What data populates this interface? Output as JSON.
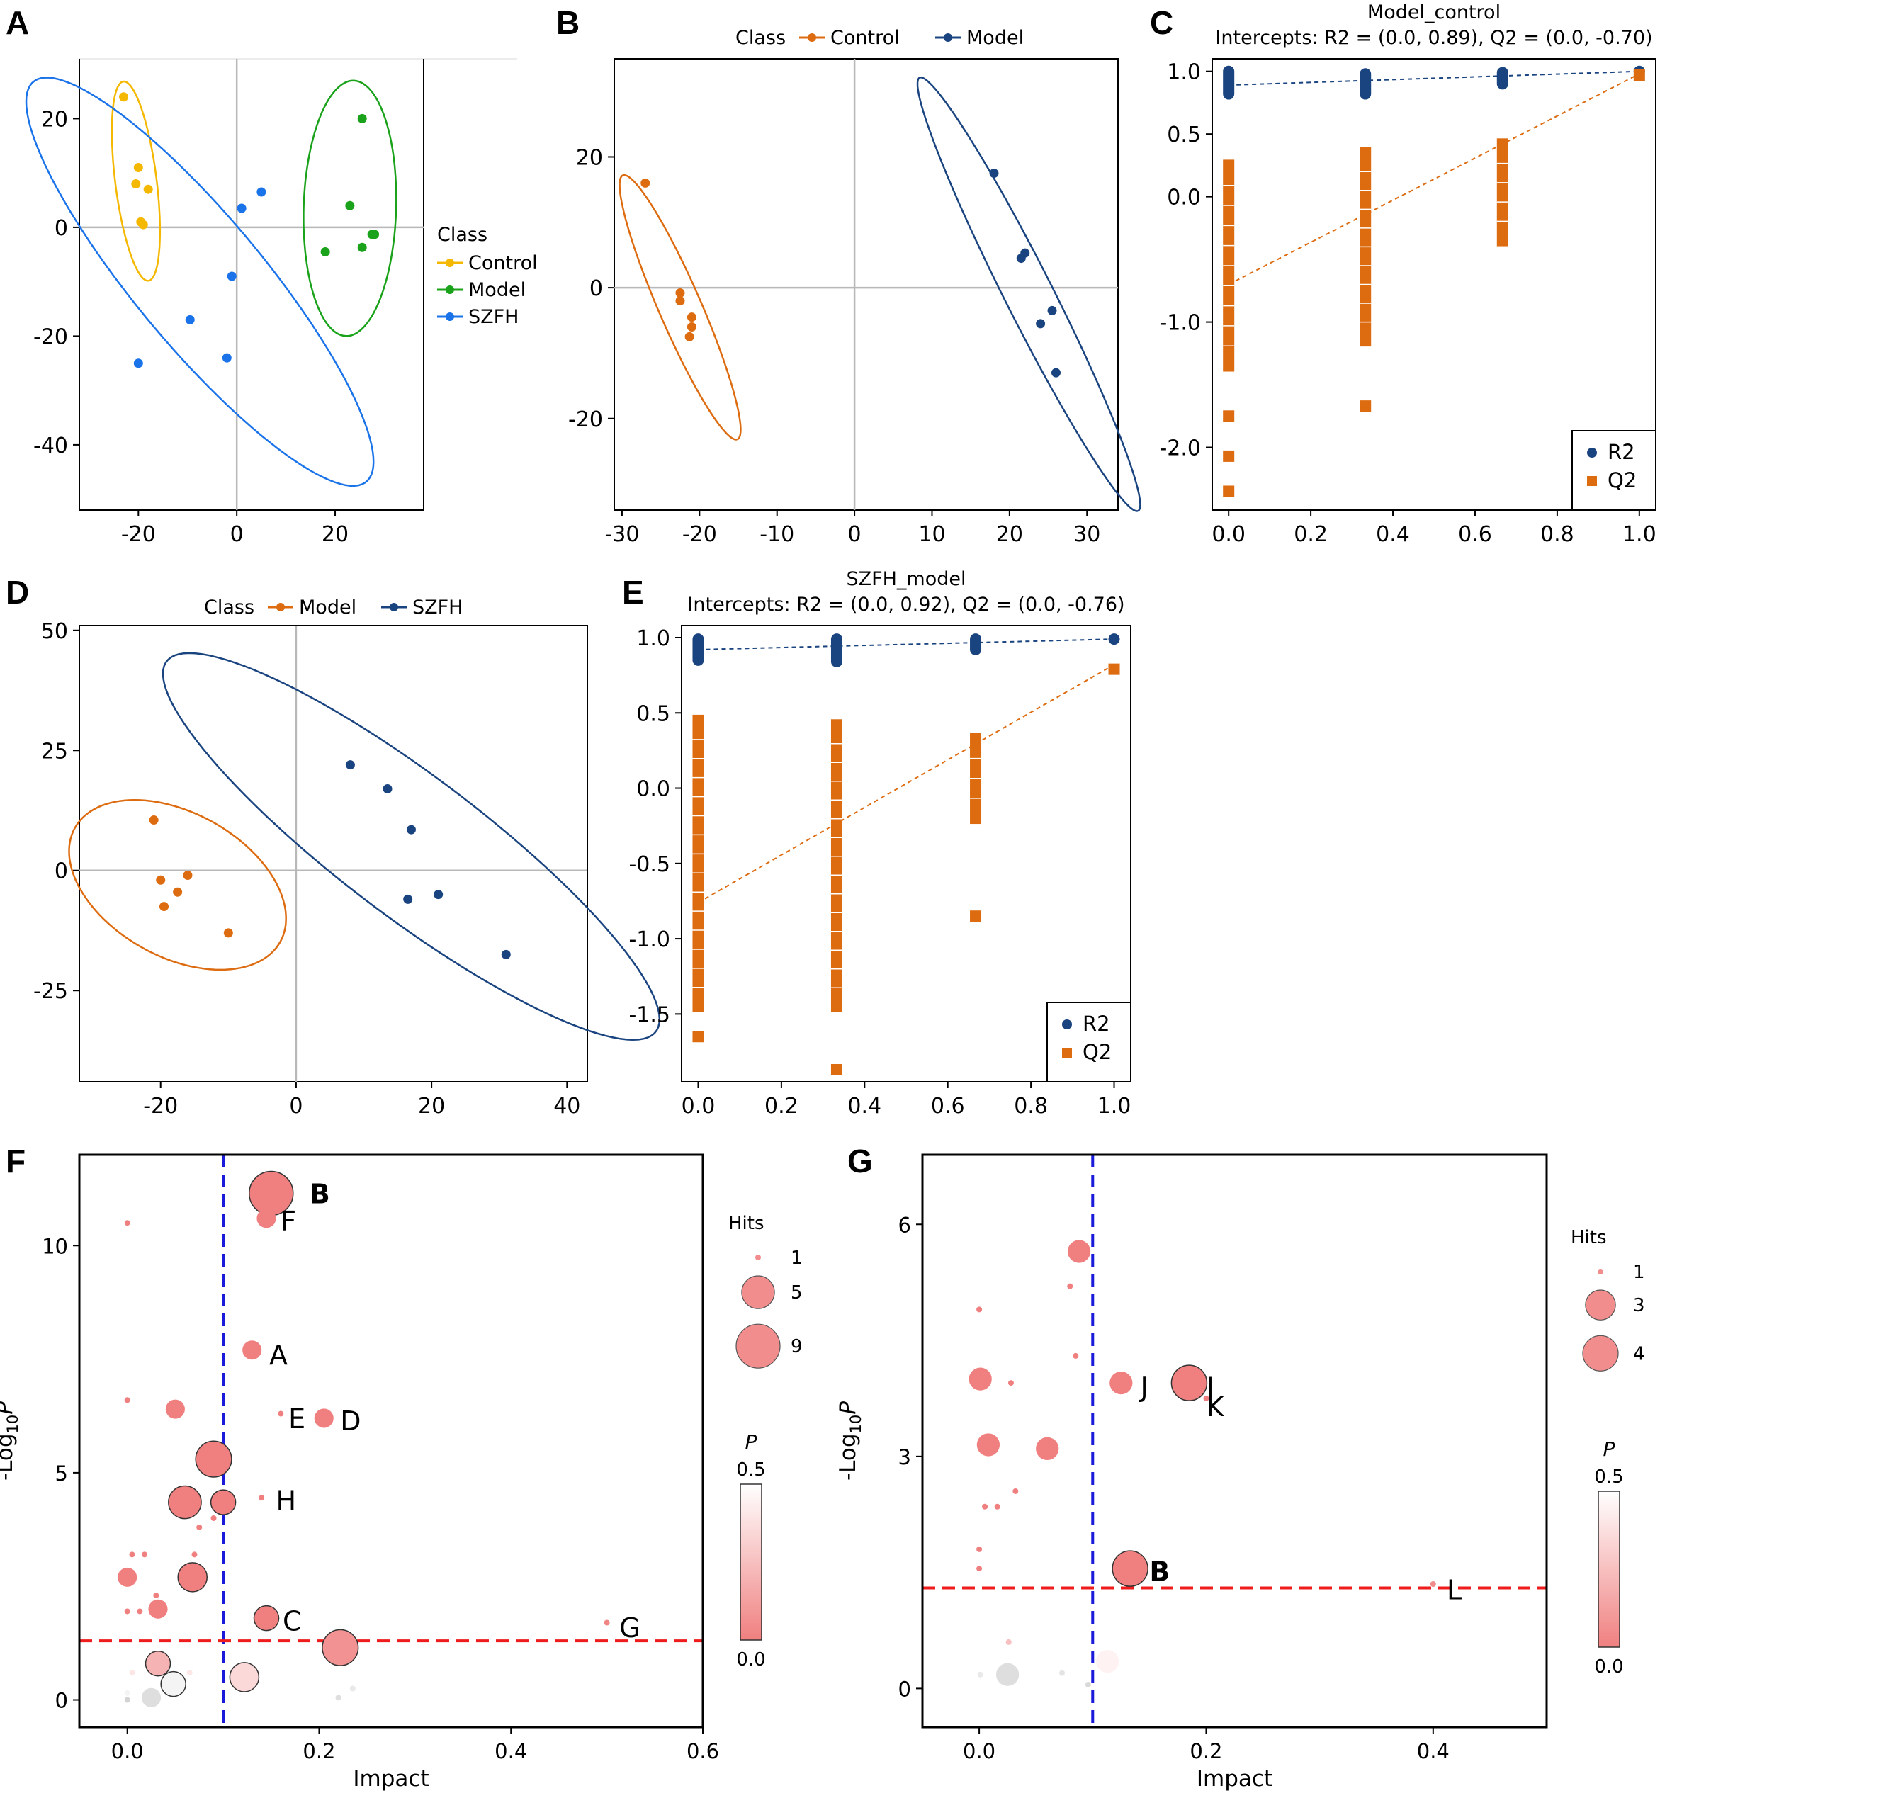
{
  "chart_data": [
    {
      "id": "A",
      "panel_label": "A",
      "type": "scatter",
      "title": "",
      "xlim": [
        -32,
        38
      ],
      "ylim": [
        -52,
        31
      ],
      "xticks": [
        -20,
        0,
        20
      ],
      "yticks": [
        -40,
        -20,
        0,
        20
      ],
      "grid": false,
      "legend": {
        "title": "Class",
        "position": "right",
        "entries": [
          "Control",
          "Model",
          "SZFH"
        ]
      },
      "series": [
        {
          "name": "Control",
          "color": "#f5b800",
          "points": [
            [
              -23,
              24
            ],
            [
              -20,
              11
            ],
            [
              -20.5,
              8
            ],
            [
              -18,
              7
            ],
            [
              -19.5,
              1
            ],
            [
              -19,
              0.5
            ]
          ],
          "ellipse": {
            "cx": -20.5,
            "cy": 8.5,
            "rx": 18.5,
            "ry": 4.2,
            "angle": -82
          }
        },
        {
          "name": "Model",
          "color": "#1aa21a",
          "points": [
            [
              25.5,
              20
            ],
            [
              23,
              4
            ],
            [
              27.5,
              -1.3
            ],
            [
              28,
              -1.3
            ],
            [
              18,
              -4.5
            ],
            [
              25.5,
              -3.7
            ]
          ],
          "ellipse": {
            "cx": 23,
            "cy": 3.5,
            "rx": 23.5,
            "ry": 9.4,
            "angle": -92
          }
        },
        {
          "name": "SZFH",
          "color": "#1a73e8",
          "points": [
            [
              5,
              6.5
            ],
            [
              1,
              3.5
            ],
            [
              -1,
              -9
            ],
            [
              -9.5,
              -17
            ],
            [
              -20,
              -25
            ],
            [
              -2,
              -24
            ]
          ],
          "ellipse": {
            "cx": -7.5,
            "cy": -10,
            "rx": 50,
            "ry": 12.5,
            "angle": -47
          }
        }
      ]
    },
    {
      "id": "B",
      "panel_label": "B",
      "type": "scatter",
      "title": "",
      "xlim": [
        -31,
        34
      ],
      "ylim": [
        -34,
        35
      ],
      "xticks": [
        -30,
        -20,
        -10,
        0,
        10,
        20,
        30
      ],
      "yticks": [
        -20,
        0,
        20
      ],
      "grid": false,
      "legend": {
        "title": "Class",
        "position": "top",
        "entries": [
          "Control",
          "Model"
        ]
      },
      "series": [
        {
          "name": "Control",
          "color": "#dd6b10",
          "points": [
            [
              -27,
              16
            ],
            [
              -22.5,
              -0.8
            ],
            [
              -22.5,
              -2
            ],
            [
              -21,
              -4.5
            ],
            [
              -21,
              -6
            ],
            [
              -21.3,
              -7.5
            ]
          ],
          "ellipse": {
            "cx": -22.5,
            "cy": -3,
            "rx": 21.5,
            "ry": 2.8,
            "angle": -70
          }
        },
        {
          "name": "Model",
          "color": "#1a4480",
          "points": [
            [
              18,
              17.5
            ],
            [
              22,
              5.3
            ],
            [
              21.5,
              4.5
            ],
            [
              25.5,
              -3.5
            ],
            [
              24,
              -5.5
            ],
            [
              26,
              -13
            ]
          ],
          "ellipse": {
            "cx": 22.5,
            "cy": -1,
            "rx": 36,
            "ry": 3.2,
            "angle": -67
          }
        }
      ]
    },
    {
      "id": "C",
      "panel_label": "C",
      "type": "scatter",
      "title": "Model_control",
      "subtitle": "Intercepts: R2 = (0.0, 0.89), Q2 = (0.0, -0.70)",
      "xlim": [
        -0.04,
        1.04
      ],
      "ylim": [
        -2.5,
        1.1
      ],
      "xticks": [
        "0.0",
        "0.2",
        "0.4",
        "0.6",
        "0.8",
        "1.0"
      ],
      "yticks": [
        "1.0",
        "0.5",
        "0.0",
        "-1.0",
        "-2.0"
      ],
      "ytick_values": [
        1.0,
        0.5,
        0.0,
        -1.0,
        -2.0
      ],
      "grid": false,
      "legend": {
        "position": "bottom-right",
        "entries": [
          "R2",
          "Q2"
        ]
      },
      "series": [
        {
          "name": "R2",
          "color": "#1a4480",
          "marker": "circle",
          "x": [
            0.0,
            0.333,
            0.667,
            1.0
          ],
          "y_range": [
            [
              0.82,
              1.0
            ],
            [
              0.82,
              0.98
            ],
            [
              0.9,
              0.99
            ],
            [
              1.0,
              1.0
            ]
          ],
          "fit": {
            "intercept": 0.89,
            "end": 1.0
          }
        },
        {
          "name": "Q2",
          "color": "#dd6b10",
          "marker": "square",
          "x": [
            0.0,
            0.333,
            0.667,
            1.0
          ],
          "y_range": [
            [
              -1.35,
              0.25
            ],
            [
              -1.15,
              0.35
            ],
            [
              -0.35,
              0.42
            ],
            [
              0.97,
              0.97
            ]
          ],
          "outliers": [
            [
              0.0,
              -1.75
            ],
            [
              0.0,
              -2.07
            ],
            [
              0.0,
              -2.35
            ],
            [
              0.333,
              -1.67
            ]
          ],
          "fit": {
            "intercept": -0.7,
            "end": 0.98
          }
        }
      ]
    },
    {
      "id": "D",
      "panel_label": "D",
      "type": "scatter",
      "title": "",
      "xlim": [
        -32,
        43
      ],
      "ylim": [
        -44,
        51
      ],
      "xticks": [
        -20,
        0,
        20,
        40
      ],
      "yticks": [
        -25,
        0,
        25,
        50
      ],
      "grid": false,
      "legend": {
        "title": "Class",
        "position": "top",
        "entries": [
          "Model",
          "SZFH"
        ]
      },
      "series": [
        {
          "name": "Model",
          "color": "#dd6b10",
          "points": [
            [
              -21,
              10.5
            ],
            [
              -20,
              -2
            ],
            [
              -17.5,
              -4.5
            ],
            [
              -16,
              -1
            ],
            [
              -19.5,
              -7.5
            ],
            [
              -10,
              -13
            ]
          ],
          "ellipse": {
            "cx": -17.5,
            "cy": -3,
            "rx": 20,
            "ry": 13,
            "angle": -52
          }
        },
        {
          "name": "SZFH",
          "color": "#1a4480",
          "points": [
            [
              8,
              22
            ],
            [
              13.5,
              17
            ],
            [
              17,
              8.5
            ],
            [
              16.5,
              -6
            ],
            [
              21,
              -5
            ],
            [
              31,
              -17.5
            ]
          ],
          "ellipse": {
            "cx": 17,
            "cy": 5,
            "rx": 53,
            "ry": 12.5,
            "angle": -48
          }
        }
      ]
    },
    {
      "id": "E",
      "panel_label": "E",
      "type": "scatter",
      "title": "SZFH_model",
      "subtitle": "Intercepts: R2 = (0.0, 0.92), Q2 = (0.0, -0.76)",
      "xlim": [
        -0.04,
        1.04
      ],
      "ylim": [
        -1.95,
        1.08
      ],
      "xticks": [
        "0.0",
        "0.2",
        "0.4",
        "0.6",
        "0.8",
        "1.0"
      ],
      "yticks": [
        "1.0",
        "0.5",
        "0.0",
        "-0.5",
        "-1.0",
        "-1.5"
      ],
      "ytick_values": [
        1.0,
        0.5,
        0.0,
        -0.5,
        -1.0,
        -1.5
      ],
      "grid": false,
      "legend": {
        "position": "bottom-right",
        "entries": [
          "R2",
          "Q2"
        ]
      },
      "series": [
        {
          "name": "R2",
          "color": "#1a4480",
          "marker": "circle",
          "x": [
            0.0,
            0.333,
            0.667,
            1.0
          ],
          "y_range": [
            [
              0.85,
              0.99
            ],
            [
              0.84,
              0.99
            ],
            [
              0.92,
              0.99
            ],
            [
              0.99,
              0.99
            ]
          ],
          "fit": {
            "intercept": 0.92,
            "end": 0.99
          }
        },
        {
          "name": "Q2",
          "color": "#dd6b10",
          "marker": "square",
          "x": [
            0.0,
            0.333,
            0.667,
            1.0
          ],
          "y_range": [
            [
              -1.45,
              0.45
            ],
            [
              -1.45,
              0.42
            ],
            [
              -0.2,
              0.33
            ],
            [
              0.79,
              0.79
            ]
          ],
          "outliers": [
            [
              0.0,
              -1.65
            ],
            [
              0.333,
              -1.87
            ],
            [
              0.667,
              -0.85
            ]
          ],
          "fit": {
            "intercept": -0.76,
            "end": 0.82
          }
        }
      ]
    },
    {
      "id": "F",
      "panel_label": "F",
      "type": "scatter",
      "xlabel": "Impact",
      "ylabel": "-Log10P",
      "xlim": [
        -0.05,
        0.6
      ],
      "ylim": [
        -0.6,
        12.0
      ],
      "xticks": [
        "0.0",
        "0.2",
        "0.4",
        "0.6"
      ],
      "yticks": [
        "0",
        "5",
        "10"
      ],
      "ytick_values": [
        0,
        5,
        10
      ],
      "threshold_x": 0.1,
      "threshold_y": 1.3,
      "size_legend": {
        "title": "Hits",
        "entries": [
          1,
          5,
          9
        ]
      },
      "color_legend": {
        "title": "P",
        "max": "0.5",
        "min": "0.0"
      },
      "points": [
        {
          "x": 0.15,
          "y": 11.15,
          "hits": 9,
          "p": 0.0
        },
        {
          "x": 0.145,
          "y": 10.6,
          "hits": 2,
          "p": 0.0
        },
        {
          "x": 0.0,
          "y": 10.5,
          "hits": 1,
          "p": 0.0
        },
        {
          "x": 0.13,
          "y": 7.7,
          "hits": 2,
          "p": 0.0
        },
        {
          "x": 0.0,
          "y": 6.6,
          "hits": 1,
          "p": 0.0
        },
        {
          "x": 0.05,
          "y": 6.4,
          "hits": 2,
          "p": 0.0
        },
        {
          "x": 0.16,
          "y": 6.3,
          "hits": 1,
          "p": 0.0
        },
        {
          "x": 0.205,
          "y": 6.2,
          "hits": 2,
          "p": 0.0
        },
        {
          "x": 0.09,
          "y": 5.3,
          "hits": 6,
          "p": 0.0
        },
        {
          "x": 0.06,
          "y": 4.35,
          "hits": 5,
          "p": 0.0
        },
        {
          "x": 0.1,
          "y": 4.35,
          "hits": 3,
          "p": 0.0
        },
        {
          "x": 0.14,
          "y": 4.45,
          "hits": 1,
          "p": 0.0
        },
        {
          "x": 0.09,
          "y": 4.0,
          "hits": 1,
          "p": 0.0
        },
        {
          "x": 0.075,
          "y": 3.8,
          "hits": 1,
          "p": 0.0
        },
        {
          "x": 0.005,
          "y": 3.2,
          "hits": 1,
          "p": 0.0
        },
        {
          "x": 0.018,
          "y": 3.2,
          "hits": 1,
          "p": 0.0
        },
        {
          "x": 0.07,
          "y": 3.2,
          "hits": 1,
          "p": 0.0
        },
        {
          "x": 0.0,
          "y": 2.7,
          "hits": 2,
          "p": 0.0
        },
        {
          "x": 0.068,
          "y": 2.7,
          "hits": 4,
          "p": 0.0
        },
        {
          "x": 0.03,
          "y": 2.3,
          "hits": 1,
          "p": 0.0
        },
        {
          "x": 0.032,
          "y": 2.0,
          "hits": 2,
          "p": 0.0
        },
        {
          "x": 0.0,
          "y": 1.95,
          "hits": 1,
          "p": 0.0
        },
        {
          "x": 0.013,
          "y": 1.95,
          "hits": 1,
          "p": 0.0
        },
        {
          "x": 0.145,
          "y": 1.8,
          "hits": 3,
          "p": 0.0
        },
        {
          "x": 0.5,
          "y": 1.7,
          "hits": 1,
          "p": 0.02
        },
        {
          "x": 0.222,
          "y": 1.15,
          "hits": 6,
          "p": 0.07
        },
        {
          "x": 0.032,
          "y": 0.8,
          "hits": 3,
          "p": 0.2
        },
        {
          "x": 0.122,
          "y": 0.5,
          "hits": 4,
          "p": 0.35
        },
        {
          "x": 0.048,
          "y": 0.35,
          "hits": 3,
          "p": 0.6
        },
        {
          "x": 0.0,
          "y": 0.15,
          "hits": 1,
          "p": 0.6
        },
        {
          "x": 0.025,
          "y": 0.05,
          "hits": 2,
          "p": 0.8
        },
        {
          "x": 0.0,
          "y": 0.0,
          "hits": 1,
          "p": 0.9
        },
        {
          "x": 0.22,
          "y": 0.05,
          "hits": 1,
          "p": 0.8
        },
        {
          "x": 0.235,
          "y": 0.25,
          "hits": 1,
          "p": 0.7
        },
        {
          "x": 0.065,
          "y": 0.6,
          "hits": 1,
          "p": 0.4
        },
        {
          "x": 0.005,
          "y": 0.6,
          "hits": 1,
          "p": 0.4
        }
      ],
      "annotations": [
        {
          "text": "B",
          "x": 0.19,
          "y": 11.15,
          "color": "#ee1111",
          "bold": true
        },
        {
          "text": "F",
          "x": 0.16,
          "y": 10.55
        },
        {
          "text": "A",
          "x": 0.148,
          "y": 7.6
        },
        {
          "text": "E",
          "x": 0.168,
          "y": 6.2
        },
        {
          "text": "D",
          "x": 0.222,
          "y": 6.15
        },
        {
          "text": "H",
          "x": 0.155,
          "y": 4.4
        },
        {
          "text": "C",
          "x": 0.162,
          "y": 1.75
        },
        {
          "text": "G",
          "x": 0.513,
          "y": 1.6
        }
      ]
    },
    {
      "id": "G",
      "panel_label": "G",
      "type": "scatter",
      "xlabel": "Impact",
      "ylabel": "-Log10P",
      "xlim": [
        -0.05,
        0.5
      ],
      "ylim": [
        -0.5,
        6.9
      ],
      "xticks": [
        "0.0",
        "0.2",
        "0.4"
      ],
      "yticks": [
        "0",
        "3",
        "6"
      ],
      "ytick_values": [
        0,
        3,
        6
      ],
      "threshold_x": 0.1,
      "threshold_y": 1.3,
      "size_legend": {
        "title": "Hits",
        "entries": [
          1,
          3,
          4
        ]
      },
      "color_legend": {
        "title": "P",
        "max": "0.5",
        "min": "0.0"
      },
      "points": [
        {
          "x": 0.088,
          "y": 5.65,
          "hits": 2,
          "p": 0.0
        },
        {
          "x": 0.08,
          "y": 5.2,
          "hits": 1,
          "p": 0.0
        },
        {
          "x": 0.0,
          "y": 4.9,
          "hits": 1,
          "p": 0.0
        },
        {
          "x": 0.085,
          "y": 4.3,
          "hits": 1,
          "p": 0.0
        },
        {
          "x": 0.001,
          "y": 4.0,
          "hits": 2,
          "p": 0.0
        },
        {
          "x": 0.028,
          "y": 3.95,
          "hits": 1,
          "p": 0.0
        },
        {
          "x": 0.125,
          "y": 3.95,
          "hits": 2,
          "p": 0.0
        },
        {
          "x": 0.185,
          "y": 3.95,
          "hits": 4,
          "p": 0.0
        },
        {
          "x": 0.2,
          "y": 3.75,
          "hits": 1,
          "p": 0.0
        },
        {
          "x": 0.008,
          "y": 3.15,
          "hits": 2,
          "p": 0.0
        },
        {
          "x": 0.06,
          "y": 3.1,
          "hits": 2,
          "p": 0.0
        },
        {
          "x": 0.032,
          "y": 2.55,
          "hits": 1,
          "p": 0.0
        },
        {
          "x": 0.005,
          "y": 2.35,
          "hits": 1,
          "p": 0.0
        },
        {
          "x": 0.016,
          "y": 2.35,
          "hits": 1,
          "p": 0.0
        },
        {
          "x": 0.0,
          "y": 1.8,
          "hits": 1,
          "p": 0.0
        },
        {
          "x": 0.0,
          "y": 1.55,
          "hits": 1,
          "p": 0.0
        },
        {
          "x": 0.133,
          "y": 1.55,
          "hits": 4,
          "p": 0.0
        },
        {
          "x": 0.4,
          "y": 1.35,
          "hits": 1,
          "p": 0.04
        },
        {
          "x": 0.026,
          "y": 0.6,
          "hits": 1,
          "p": 0.25
        },
        {
          "x": 0.113,
          "y": 0.35,
          "hits": 2,
          "p": 0.45
        },
        {
          "x": 0.001,
          "y": 0.18,
          "hits": 1,
          "p": 0.7
        },
        {
          "x": 0.025,
          "y": 0.18,
          "hits": 2,
          "p": 0.8
        },
        {
          "x": 0.073,
          "y": 0.2,
          "hits": 1,
          "p": 0.75
        },
        {
          "x": 0.096,
          "y": 0.05,
          "hits": 1,
          "p": 0.85
        }
      ],
      "annotations": [
        {
          "text": "J",
          "x": 0.142,
          "y": 3.9
        },
        {
          "text": "I",
          "x": 0.2,
          "y": 3.9
        },
        {
          "text": "K",
          "x": 0.2,
          "y": 3.65
        },
        {
          "text": "B",
          "x": 0.15,
          "y": 1.52,
          "color": "#ee1111",
          "bold": true
        },
        {
          "text": "L",
          "x": 0.412,
          "y": 1.28
        }
      ]
    }
  ]
}
